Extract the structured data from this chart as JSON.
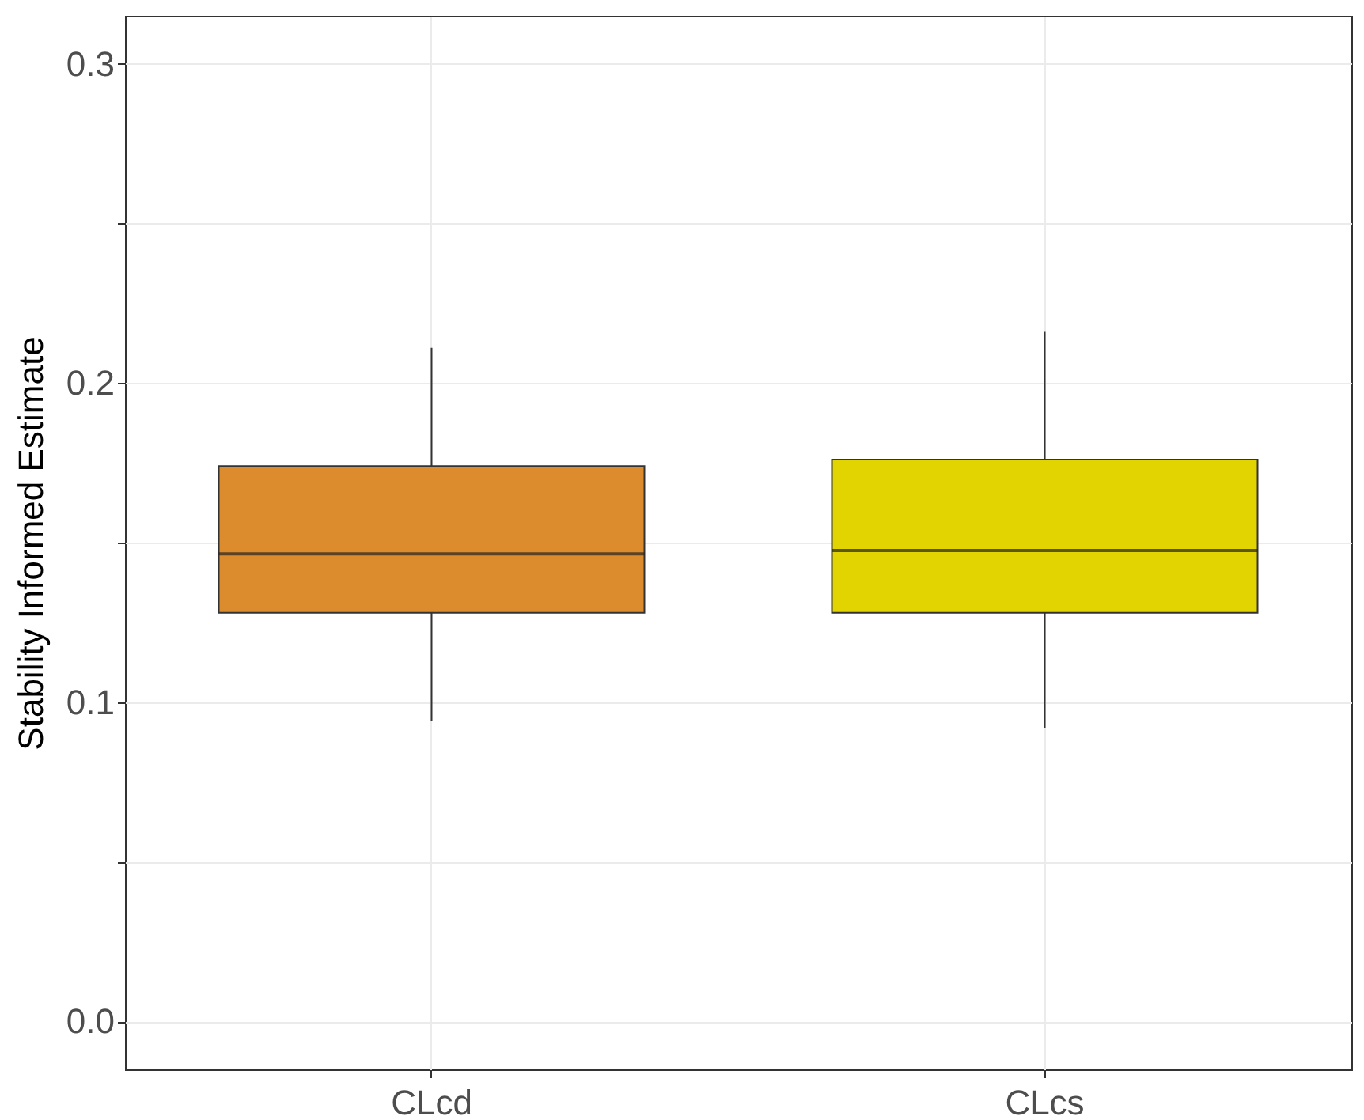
{
  "chart_data": {
    "type": "box",
    "ylabel": "Stability Informed Estimate",
    "categories": [
      "CLcd",
      "CLcs"
    ],
    "boxes": [
      {
        "low": 0.094,
        "q1": 0.128,
        "median": 0.1465,
        "q3": 0.174,
        "high": 0.211
      },
      {
        "low": 0.092,
        "q1": 0.128,
        "median": 0.1475,
        "q3": 0.176,
        "high": 0.216
      }
    ],
    "colors": [
      "#dd8c2d",
      "#e2d400"
    ],
    "ylim": [
      -0.015,
      0.315
    ],
    "yticks": [
      {
        "value": 0,
        "label": "0.0"
      },
      {
        "value": 0.05,
        "label": null
      },
      {
        "value": 0.1,
        "label": "0.1"
      },
      {
        "value": 0.15,
        "label": null
      },
      {
        "value": 0.2,
        "label": "0.2"
      },
      {
        "value": 0.25,
        "label": null
      },
      {
        "value": 0.3,
        "label": "0.3"
      }
    ],
    "grid": true
  }
}
